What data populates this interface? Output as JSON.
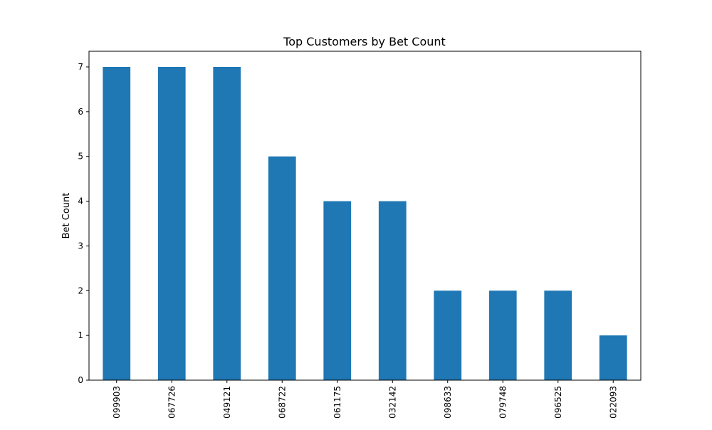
{
  "chart_data": {
    "type": "bar",
    "title": "Top Customers by Bet Count",
    "xlabel": "",
    "ylabel": "Bet Count",
    "categories": [
      "099903",
      "067726",
      "049121",
      "068722",
      "061175",
      "032142",
      "098633",
      "079748",
      "096525",
      "022093"
    ],
    "values": [
      7,
      7,
      7,
      5,
      4,
      4,
      2,
      2,
      2,
      1
    ],
    "ylim": [
      0,
      7.35
    ],
    "yticks": [
      0,
      1,
      2,
      3,
      4,
      5,
      6,
      7
    ],
    "grid": false,
    "legend": "none",
    "bar_color": "#1f77b4",
    "xtick_rotation": 90
  }
}
